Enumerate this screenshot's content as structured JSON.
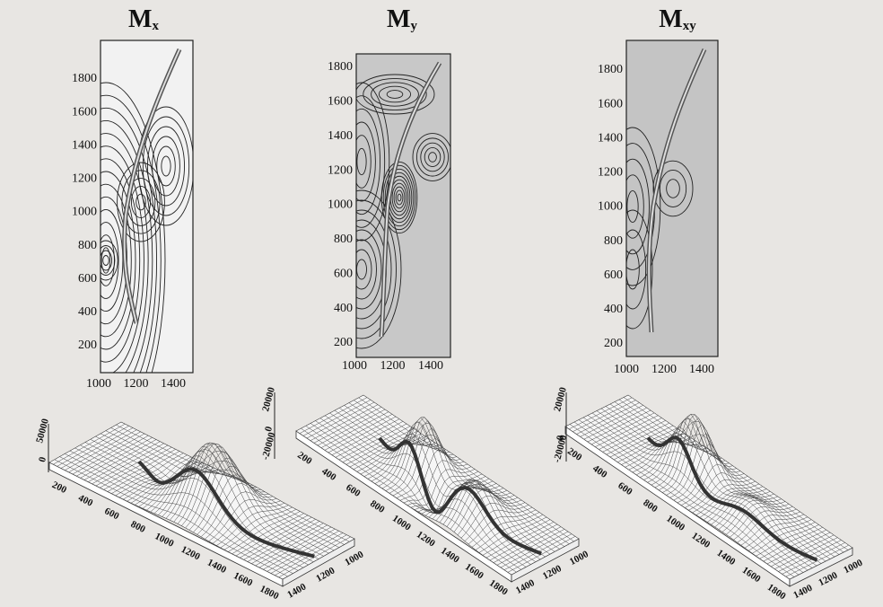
{
  "panels": [
    {
      "title": {
        "letter": "M",
        "subscript": "x"
      },
      "y_ticks": [
        200,
        400,
        600,
        800,
        1000,
        1200,
        1400,
        1600,
        1800
      ],
      "x_ticks": [
        1000,
        1200,
        1400
      ]
    },
    {
      "title": {
        "letter": "M",
        "subscript": "y"
      },
      "y_ticks": [
        200,
        400,
        600,
        800,
        1000,
        1200,
        1400,
        1600,
        1800
      ],
      "x_ticks": [
        1000,
        1200,
        1400
      ]
    },
    {
      "title": {
        "letter": "M",
        "subscript": "xy"
      },
      "y_ticks": [
        200,
        400,
        600,
        800,
        1000,
        1200,
        1400,
        1600,
        1800
      ],
      "x_ticks": [
        1000,
        1200,
        1400
      ]
    }
  ],
  "surfaces": [
    {
      "z_ticks": [
        50000,
        0
      ],
      "long_ticks": [
        200,
        400,
        600,
        800,
        1000,
        1200,
        1400,
        1600,
        1800
      ],
      "short_ticks": [
        1400,
        1200,
        1000
      ]
    },
    {
      "z_ticks": [
        20000,
        0,
        -20000
      ],
      "long_ticks": [
        200,
        400,
        600,
        800,
        1000,
        1200,
        1400,
        1600,
        1800
      ],
      "short_ticks": [
        1400,
        1200,
        1000
      ]
    },
    {
      "z_ticks": [
        20000,
        0,
        -20000
      ],
      "long_ticks": [
        200,
        400,
        600,
        800,
        1000,
        1200,
        1400,
        1600,
        1800
      ],
      "short_ticks": [
        1400,
        1200,
        1000
      ]
    }
  ]
}
